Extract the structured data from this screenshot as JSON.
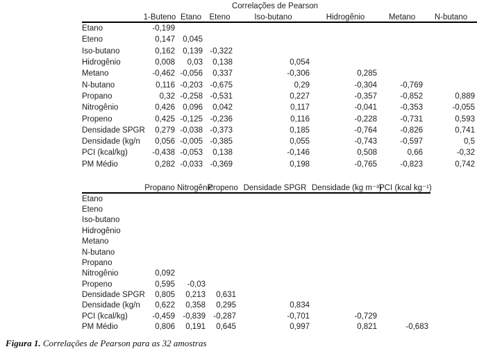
{
  "title": "Correlações de Pearson",
  "table1": {
    "columns": [
      "1-Buteno",
      "Etano",
      "Eteno",
      "Iso-butano",
      "Hidrogênio",
      "Metano",
      "N-butano"
    ],
    "rows": [
      {
        "label": "Etano",
        "values": [
          "-0,199",
          "",
          "",
          "",
          "",
          "",
          ""
        ]
      },
      {
        "label": "Eteno",
        "values": [
          "0,147",
          "0,045",
          "",
          "",
          "",
          "",
          ""
        ]
      },
      {
        "label": "Iso-butano",
        "values": [
          "0,162",
          "0,139",
          "-0,322",
          "",
          "",
          "",
          ""
        ]
      },
      {
        "label": "Hidrogênio",
        "values": [
          "0,008",
          "0,03",
          "0,138",
          "0,054",
          "",
          "",
          ""
        ]
      },
      {
        "label": "Metano",
        "values": [
          "-0,462",
          "-0,056",
          "0,337",
          "-0,306",
          "0,285",
          "",
          ""
        ]
      },
      {
        "label": "N-butano",
        "values": [
          "0,116",
          "-0,203",
          "-0,675",
          "0,29",
          "-0,304",
          "-0,769",
          ""
        ]
      },
      {
        "label": "Propano",
        "values": [
          "0,32",
          "-0,258",
          "-0,531",
          "0,227",
          "-0,357",
          "-0,852",
          "0,889"
        ]
      },
      {
        "label": "Nitrogênio",
        "values": [
          "0,426",
          "0,096",
          "0,042",
          "0,117",
          "-0,041",
          "-0,353",
          "-0,055"
        ]
      },
      {
        "label": "Propeno",
        "values": [
          "0,425",
          "-0,125",
          "-0,236",
          "0,116",
          "-0,228",
          "-0,731",
          "0,593"
        ]
      },
      {
        "label": "Densidade SPGR",
        "values": [
          "0,279",
          "-0,038",
          "-0,373",
          "0,185",
          "-0,764",
          "-0,826",
          "0,741"
        ]
      },
      {
        "label": "Densidade (kg/n",
        "values": [
          "0,056",
          "-0,005",
          "-0,385",
          "0,055",
          "-0,743",
          "-0,597",
          "0,5"
        ]
      },
      {
        "label": "PCI (kcal/kg)",
        "values": [
          "-0,438",
          "-0,053",
          "0,138",
          "-0,146",
          "0,508",
          "0,66",
          "-0,32"
        ]
      },
      {
        "label": "PM Médio",
        "values": [
          "0,282",
          "-0,033",
          "-0,369",
          "0,198",
          "-0,765",
          "-0,823",
          "0,742"
        ]
      }
    ]
  },
  "table2": {
    "columns": [
      "Propano",
      "Nitrogênic",
      "Propeno",
      "Densidade SPGR",
      "Densidade (kg m⁻³)",
      "PCI (kcal kg⁻¹)"
    ],
    "rows": [
      {
        "label": "Etano",
        "values": [
          "",
          "",
          "",
          "",
          "",
          ""
        ]
      },
      {
        "label": "Eteno",
        "values": [
          "",
          "",
          "",
          "",
          "",
          ""
        ]
      },
      {
        "label": "Iso-butano",
        "values": [
          "",
          "",
          "",
          "",
          "",
          ""
        ]
      },
      {
        "label": "Hidrogênio",
        "values": [
          "",
          "",
          "",
          "",
          "",
          ""
        ]
      },
      {
        "label": "Metano",
        "values": [
          "",
          "",
          "",
          "",
          "",
          ""
        ]
      },
      {
        "label": "N-butano",
        "values": [
          "",
          "",
          "",
          "",
          "",
          ""
        ]
      },
      {
        "label": "Propano",
        "values": [
          "",
          "",
          "",
          "",
          "",
          ""
        ]
      },
      {
        "label": "Nitrogênio",
        "values": [
          "0,092",
          "",
          "",
          "",
          "",
          ""
        ]
      },
      {
        "label": "Propeno",
        "values": [
          "0,595",
          "-0,03",
          "",
          "",
          "",
          ""
        ]
      },
      {
        "label": "Densidade SPGR",
        "values": [
          "0,805",
          "0,213",
          "0,631",
          "",
          "",
          ""
        ]
      },
      {
        "label": "Densidade (kg/n",
        "values": [
          "0,622",
          "0,358",
          "0,295",
          "0,834",
          "",
          ""
        ]
      },
      {
        "label": "PCI (kcal/kg)",
        "values": [
          "-0,459",
          "-0,839",
          "-0,287",
          "-0,701",
          "-0,729",
          ""
        ]
      },
      {
        "label": "PM Médio",
        "values": [
          "0,806",
          "0,191",
          "0,645",
          "0,997",
          "0,821",
          "-0,683"
        ]
      }
    ]
  },
  "caption": {
    "prefix": "Figura 1.",
    "text": " Correlações de Pearson para as 32 amostras"
  }
}
